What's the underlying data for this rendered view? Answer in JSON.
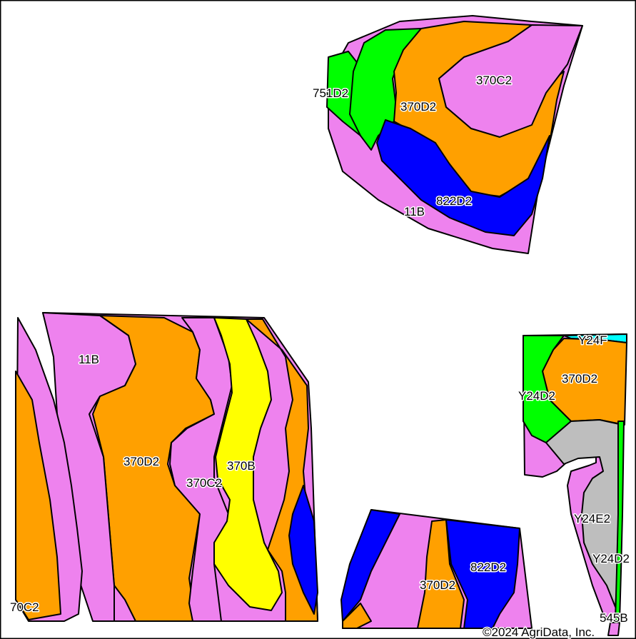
{
  "map": {
    "colors": {
      "11B": "#ee82ee",
      "370C2": "#ee82ee",
      "370D2": "#ffa000",
      "370B": "#ffff00",
      "751D2": "#00ff00",
      "822D2": "#0000ff",
      "Y24D2": "#00ff00",
      "Y24E2": "#bebebe",
      "Y24F": "#00ffff",
      "545B": "#ee82ee"
    },
    "labels": {
      "l751d2": "751D2",
      "l370c2_top": "370C2",
      "l370d2_top": "370D2",
      "l822d2_top": "822D2",
      "l11b_top": "11B",
      "l11b_left": "11B",
      "l370d2_left": "370D2",
      "l370c2_left": "370C2",
      "l370b": "370B",
      "l70c2": "70C2",
      "l370d2_mid": "370D2",
      "l822d2_mid": "822D2",
      "l y24f": "Y24F",
      "l370d2_right": "370D2",
      "ly24d2_top": "Y24D2",
      "ly24e2": "Y24E2",
      "ly24d2_bottom": "Y24D2",
      "l545b": "545B"
    },
    "copyright": "©2024 AgriData, Inc."
  }
}
